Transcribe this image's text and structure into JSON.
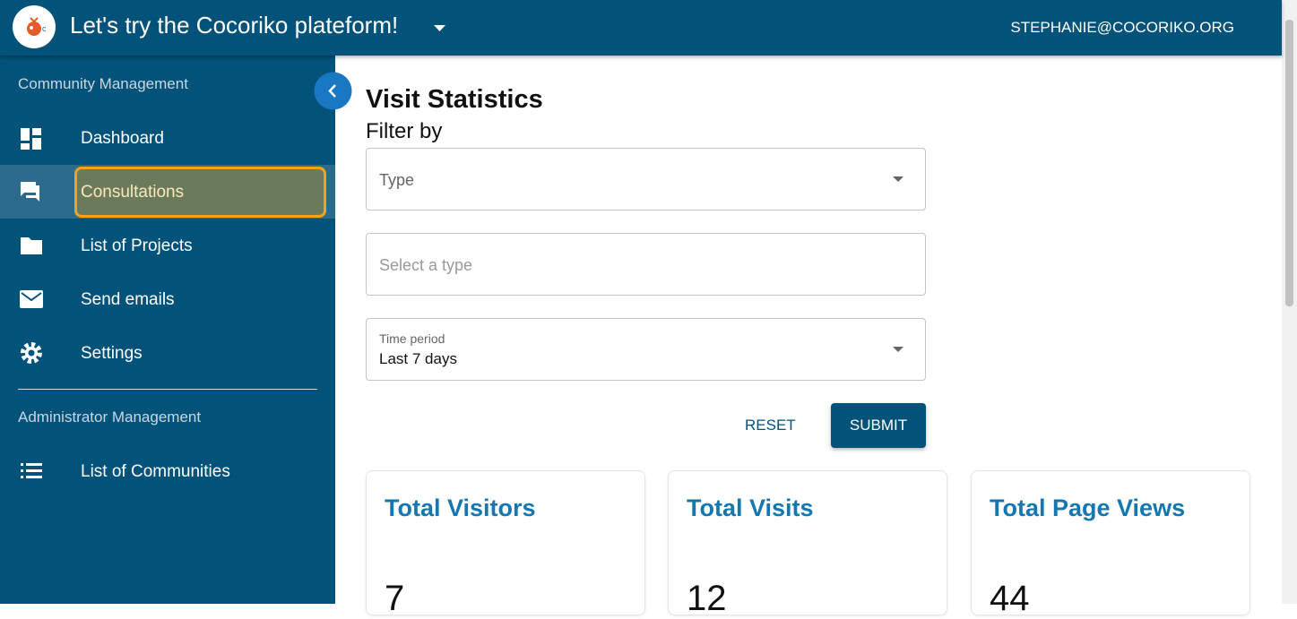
{
  "header": {
    "title": "Let's try the Cocoriko plateform!",
    "user": "STEPHANIE@COCORIKO.ORG"
  },
  "sidebar": {
    "sections": [
      {
        "title": "Community Management",
        "items": [
          "Dashboard",
          "Consultations",
          "List of Projects",
          "Send emails",
          "Settings"
        ]
      },
      {
        "title": "Administrator Management",
        "items": [
          "List of Communities"
        ]
      }
    ]
  },
  "main": {
    "title": "Visit Statistics",
    "filter_label": "Filter by",
    "filters": [
      {
        "label": "Type"
      },
      {
        "placeholder": "Select a type"
      },
      {
        "label": "Time period",
        "value": "Last 7 days"
      }
    ],
    "buttons": {
      "reset": "RESET",
      "submit": "SUBMIT"
    },
    "stats": [
      {
        "title": "Total Visitors",
        "value": 7
      },
      {
        "title": "Total Visits",
        "value": 12
      },
      {
        "title": "Total Page Views",
        "value": 44
      }
    ]
  }
}
